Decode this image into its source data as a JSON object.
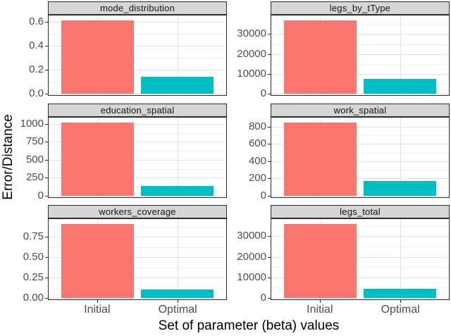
{
  "figure": {
    "ylabel": "Error/Distance",
    "xlabel": "Set of parameter (beta) values",
    "categories": [
      "Initial",
      "Optimal"
    ],
    "colors": {
      "initial_bar": "#F8766D",
      "optimal_bar": "#00BFC4",
      "strip_bg": "#D6D6D6",
      "panel_border": "#2B2B2B",
      "grid_major": "#E2E2E2",
      "grid_minor": "#F1F1F1",
      "axis_text": "#4D4D4D",
      "title_text": "#000000"
    }
  },
  "chart_data": [
    {
      "type": "bar",
      "title": "mode_distribution",
      "categories": [
        "Initial",
        "Optimal"
      ],
      "values": [
        0.61,
        0.14
      ],
      "yticks": [
        0,
        0.2,
        0.4,
        0.6
      ],
      "ytick_labels": [
        "0.0",
        "0.2",
        "0.4",
        "0.6"
      ],
      "ylim": [
        0,
        0.65
      ],
      "grid": true,
      "legend": "none"
    },
    {
      "type": "bar",
      "title": "legs_by_tType",
      "categories": [
        "Initial",
        "Optimal"
      ],
      "values": [
        37000,
        7400
      ],
      "yticks": [
        0,
        10000,
        20000,
        30000
      ],
      "ytick_labels": [
        "0",
        "10000",
        "20000",
        "30000"
      ],
      "ylim": [
        0,
        39400
      ],
      "grid": true,
      "legend": "none"
    },
    {
      "type": "bar",
      "title": "education_spatial",
      "categories": [
        "Initial",
        "Optimal"
      ],
      "values": [
        1020,
        140
      ],
      "yticks": [
        0,
        250,
        500,
        750,
        1000
      ],
      "ytick_labels": [
        "0",
        "250",
        "500",
        "750",
        "1000"
      ],
      "ylim": [
        0,
        1086
      ],
      "grid": true,
      "legend": "none"
    },
    {
      "type": "bar",
      "title": "work_spatial",
      "categories": [
        "Initial",
        "Optimal"
      ],
      "values": [
        850,
        170
      ],
      "yticks": [
        0,
        200,
        400,
        600,
        800
      ],
      "ytick_labels": [
        "0",
        "200",
        "400",
        "600",
        "800"
      ],
      "ylim": [
        0,
        905
      ],
      "grid": true,
      "legend": "none"
    },
    {
      "type": "bar",
      "title": "workers_coverage",
      "categories": [
        "Initial",
        "Optimal"
      ],
      "values": [
        0.91,
        0.1
      ],
      "yticks": [
        0,
        0.25,
        0.5,
        0.75
      ],
      "ytick_labels": [
        "0.00",
        "0.25",
        "0.50",
        "0.75"
      ],
      "ylim": [
        0,
        0.97
      ],
      "grid": true,
      "legend": "none"
    },
    {
      "type": "bar",
      "title": "legs_total",
      "categories": [
        "Initial",
        "Optimal"
      ],
      "values": [
        36000,
        4500
      ],
      "yticks": [
        0,
        10000,
        20000,
        30000
      ],
      "ytick_labels": [
        "0",
        "10000",
        "20000",
        "30000"
      ],
      "ylim": [
        0,
        38300
      ],
      "grid": true,
      "legend": "none"
    }
  ]
}
